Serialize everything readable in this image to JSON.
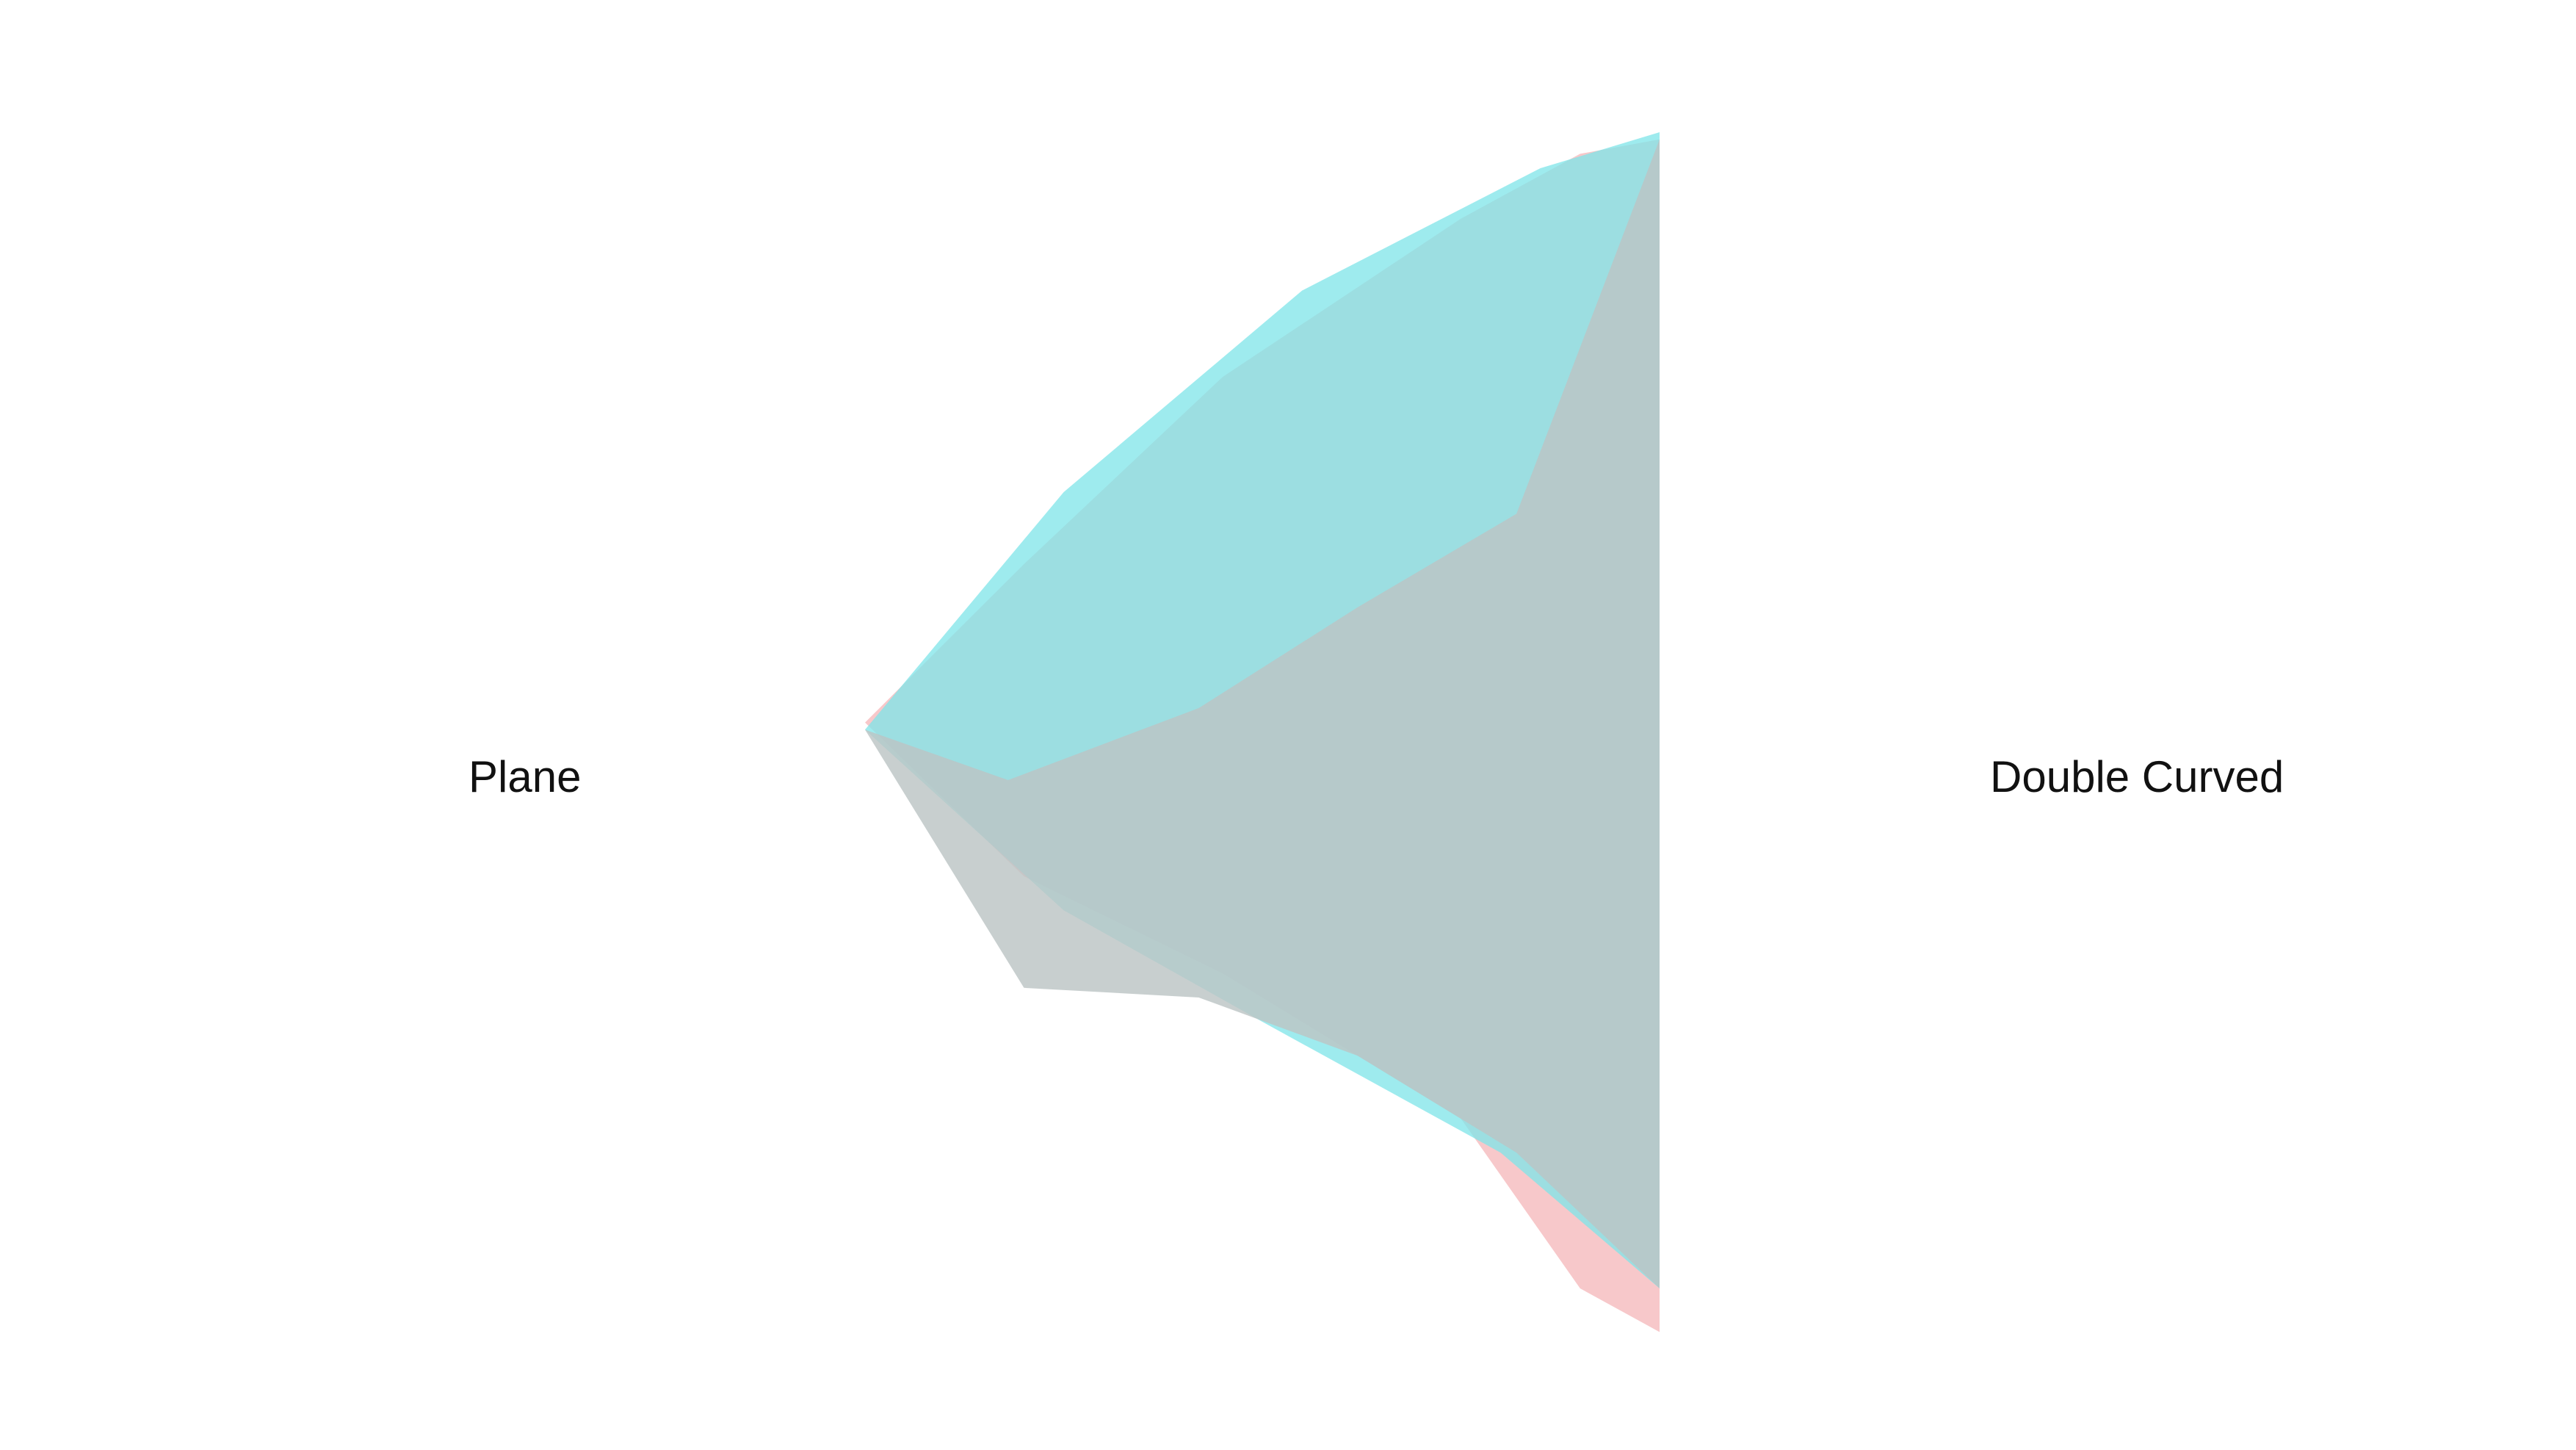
{
  "chart_data": {
    "type": "area",
    "categories": [
      "Plane",
      "Double Curved"
    ],
    "colors": {
      "series_a": "#f4b3b5",
      "series_b": "#7fe5e8",
      "overlap": "#bcc4c4"
    },
    "series": [
      {
        "key": "series_a",
        "surfaces": [
          {
            "role": "outer",
            "upper": [
              [
                0.0,
                0.18
              ],
              [
                0.2,
                0.4
              ],
              [
                0.45,
                0.66
              ],
              [
                0.75,
                0.88
              ],
              [
                0.9,
                0.97
              ],
              [
                1.0,
                0.99
              ]
            ],
            "lower": [
              [
                0.0,
                0.18
              ],
              [
                0.2,
                -0.05
              ],
              [
                0.45,
                -0.25
              ],
              [
                0.75,
                -0.55
              ],
              [
                0.9,
                -0.9
              ],
              [
                1.0,
                -0.99
              ]
            ]
          }
        ]
      },
      {
        "key": "series_b",
        "surfaces": [
          {
            "role": "outer",
            "upper": [
              [
                0.0,
                0.17
              ],
              [
                0.25,
                0.5
              ],
              [
                0.55,
                0.78
              ],
              [
                0.85,
                0.95
              ],
              [
                1.0,
                1.0
              ]
            ],
            "lower": [
              [
                0.0,
                0.17
              ],
              [
                0.25,
                -0.12
              ],
              [
                0.5,
                -0.35
              ],
              [
                0.8,
                -0.62
              ],
              [
                1.0,
                -0.9
              ]
            ]
          }
        ]
      }
    ]
  }
}
